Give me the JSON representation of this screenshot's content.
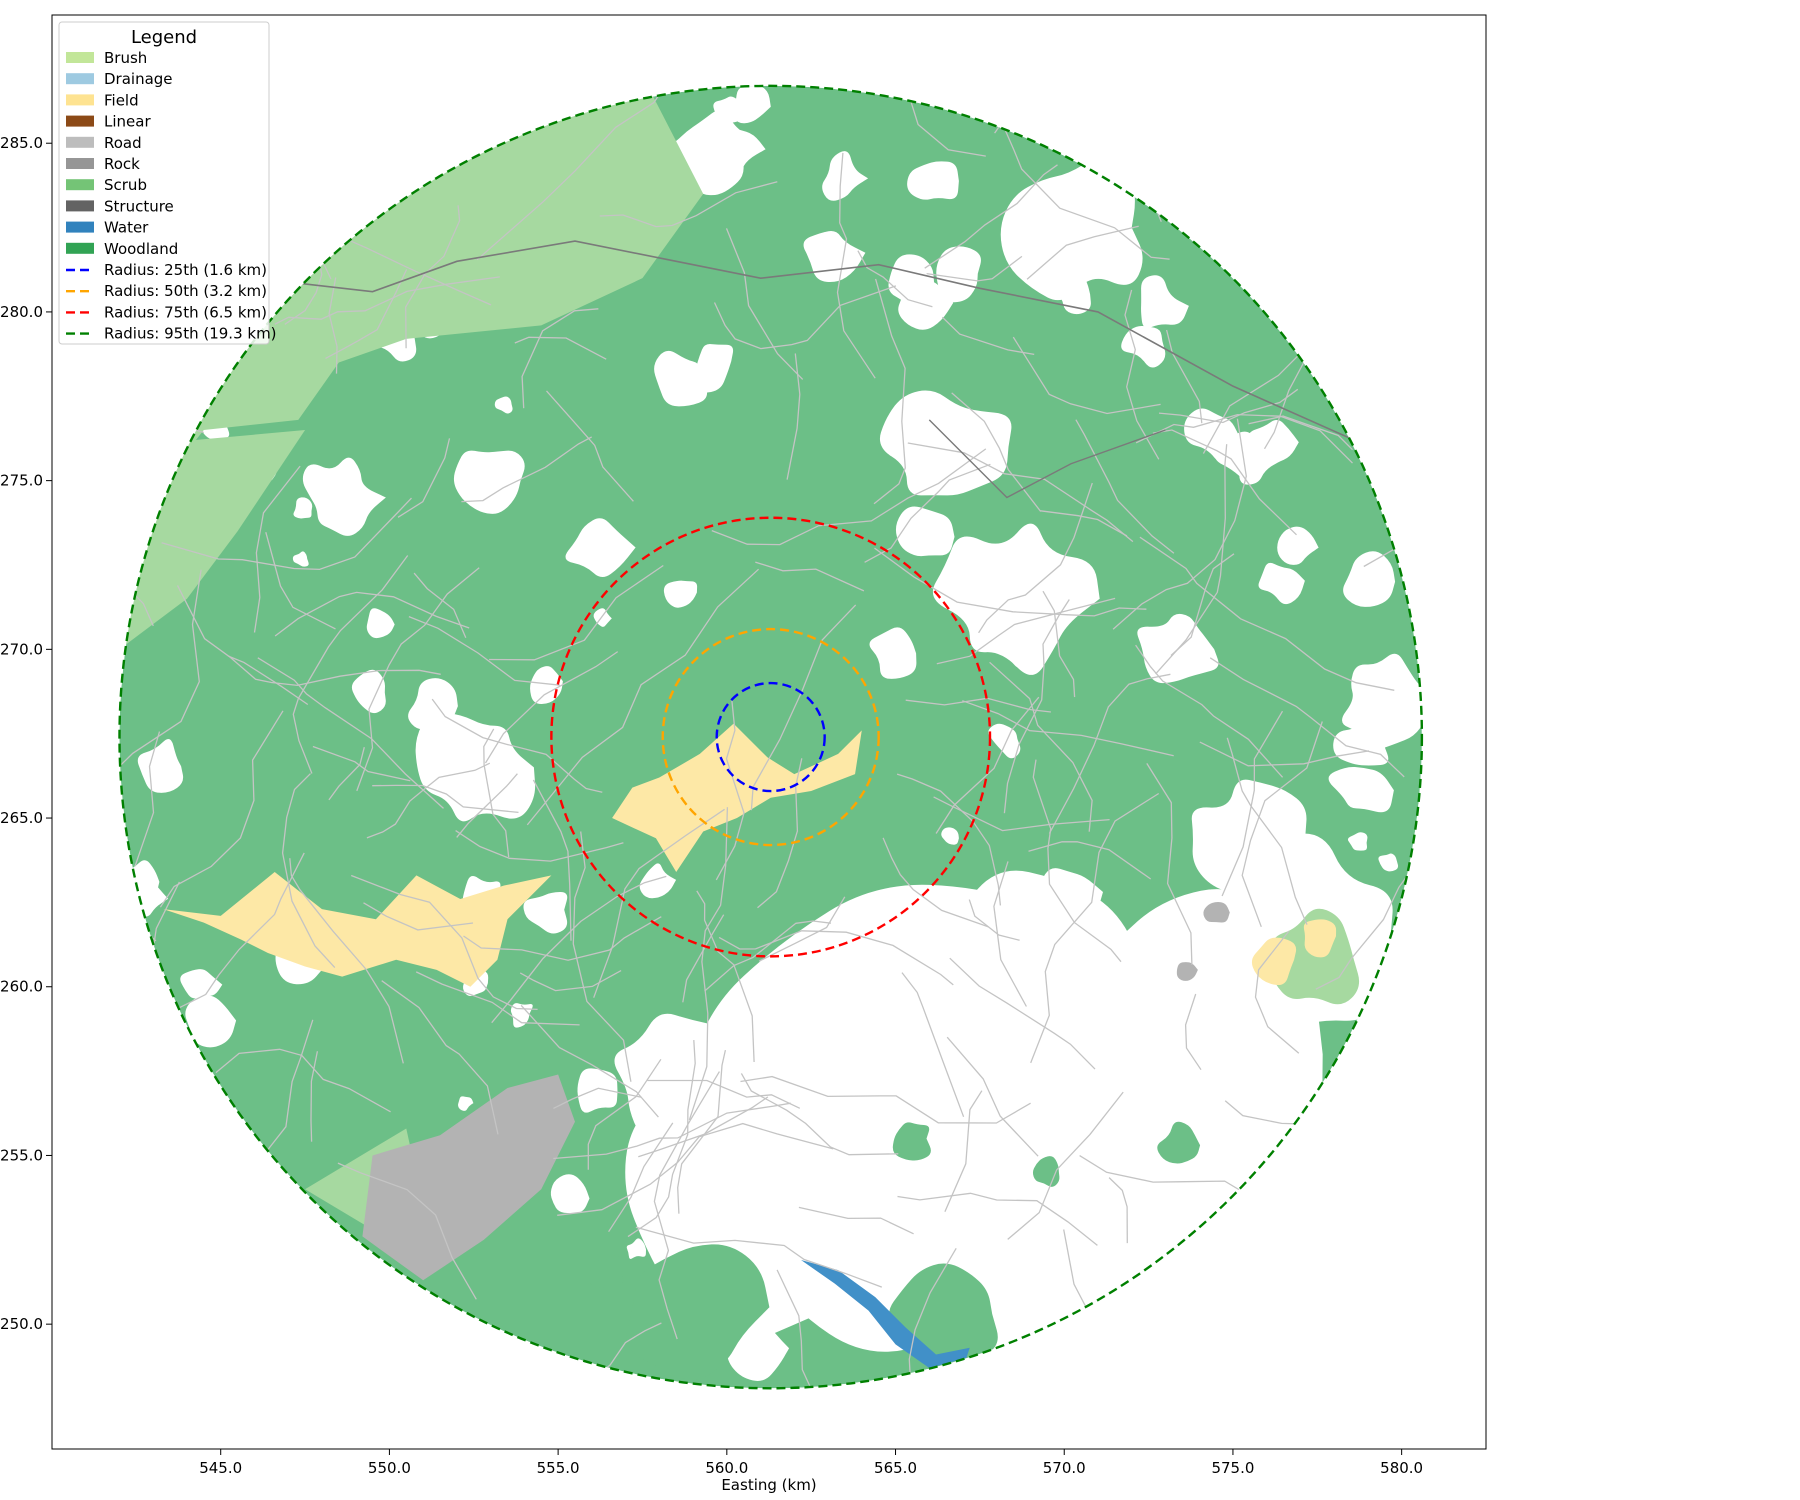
{
  "chart_data": {
    "type": "map",
    "xlabel": "Easting (km)",
    "ylabel": "",
    "xlim": [
      540.0,
      582.5
    ],
    "ylim": [
      246.3,
      288.8
    ],
    "x_ticks": [
      545.0,
      550.0,
      555.0,
      560.0,
      565.0,
      570.0,
      575.0,
      580.0
    ],
    "y_ticks": [
      250.0,
      255.0,
      260.0,
      265.0,
      270.0,
      275.0,
      280.0,
      285.0
    ],
    "x_tick_labels": [
      "545.0",
      "550.0",
      "555.0",
      "560.0",
      "565.0",
      "570.0",
      "575.0",
      "580.0"
    ],
    "y_tick_labels": [
      "250.0",
      "255.0",
      "260.0",
      "265.0",
      "270.0",
      "275.0",
      "280.0",
      "285.0"
    ],
    "center": {
      "x": 561.3,
      "y": 267.4
    },
    "legend": {
      "title": "Legend",
      "placement": "top-left",
      "entries": [
        {
          "label": "Brush",
          "kind": "patch",
          "color": "#c2e699"
        },
        {
          "label": "Drainage",
          "kind": "patch",
          "color": "#9ecae1"
        },
        {
          "label": "Field",
          "kind": "patch",
          "color": "#fee391"
        },
        {
          "label": "Linear",
          "kind": "patch",
          "color": "#8c4a17"
        },
        {
          "label": "Road",
          "kind": "patch",
          "color": "#bdbdbd"
        },
        {
          "label": "Rock",
          "kind": "patch",
          "color": "#969696"
        },
        {
          "label": "Scrub",
          "kind": "patch",
          "color": "#74c476"
        },
        {
          "label": "Structure",
          "kind": "patch",
          "color": "#636363"
        },
        {
          "label": "Water",
          "kind": "patch",
          "color": "#3182bd"
        },
        {
          "label": "Woodland",
          "kind": "patch",
          "color": "#31a354"
        },
        {
          "label": "Radius: 25th (1.6 km)",
          "kind": "line",
          "color": "#0000ff"
        },
        {
          "label": "Radius: 50th (3.2 km)",
          "kind": "line",
          "color": "#ffa500"
        },
        {
          "label": "Radius: 75th (6.5 km)",
          "kind": "line",
          "color": "#ff0000"
        },
        {
          "label": "Radius: 95th (19.3 km)",
          "kind": "line",
          "color": "#008000"
        }
      ]
    },
    "radii_km": [
      {
        "percentile": "25th",
        "radius": 1.6,
        "color": "#0000ff"
      },
      {
        "percentile": "50th",
        "radius": 3.2,
        "color": "#ffa500"
      },
      {
        "percentile": "75th",
        "radius": 6.5,
        "color": "#ff0000"
      },
      {
        "percentile": "95th",
        "radius": 19.3,
        "color": "#008000"
      }
    ],
    "woodland_color": "#6cbf87",
    "brush_color": "#a6d9a0",
    "field_color": "#fde8a6",
    "rock_color": "#b3b3b3",
    "water_color": "#4190c8",
    "road_color": "#c4c4c4",
    "major_road_color": "#7a7a7a"
  }
}
